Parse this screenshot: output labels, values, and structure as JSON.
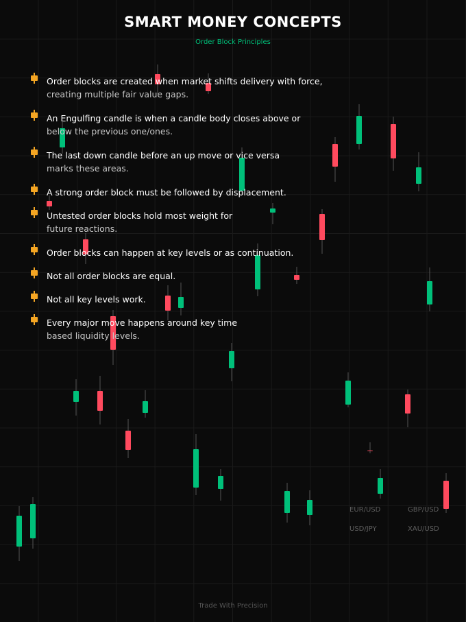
{
  "header": {
    "title": "SMART MONEY CONCEPTS",
    "subtitle": "Order Block Principles"
  },
  "colors": {
    "background": "#0b0b0b",
    "grid": "#1a1a1a",
    "bull": "#00c07a",
    "bear": "#ff4a5e",
    "accent": "#00c07a",
    "bullet_icon": "#f5a623"
  },
  "bullets": [
    {
      "line1": "Order blocks are created when market shifts delivery with force,",
      "line2": "creating multiple fair value gaps."
    },
    {
      "line1": "An Engulfing candle is when a candle body closes above or",
      "line2": "below the previous one/ones."
    },
    {
      "line1": "The last down candle before an up move or vice versa",
      "line2": "marks these areas."
    },
    {
      "line1": "A strong order block must be followed by displacement.",
      "line2": ""
    },
    {
      "line1": "Untested order blocks hold most weight for",
      "line2": "future reactions."
    },
    {
      "line1": "Order blocks can happen at key levels or as continuation.",
      "line2": ""
    },
    {
      "line1": "Not all order blocks are equal.",
      "line2": ""
    },
    {
      "line1": "Not all key levels work.",
      "line2": ""
    },
    {
      "line1": "Every major move happens around key time",
      "line2": "based liquidity levels."
    }
  ],
  "pairs": [
    "EUR/USD",
    "GBP/USD",
    "USD/JPY",
    "XAU/USD"
  ],
  "footer": "Trade With Precision"
}
